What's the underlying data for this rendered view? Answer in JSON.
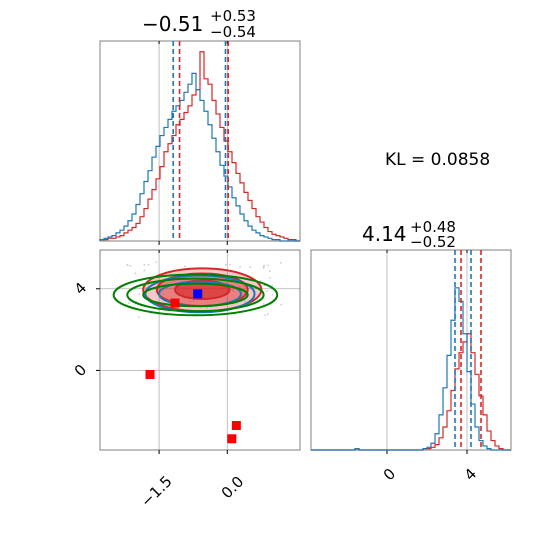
{
  "chart_data": [
    {
      "type": "histogram",
      "panel": "marginal-param-1",
      "title_value": "−0.51",
      "title_plus": "+0.53",
      "title_minus": "−0.54",
      "xlim": [
        -2.8,
        1.6
      ],
      "grid": true,
      "series": [
        {
          "color": "#d62728",
          "values": [
            1,
            1,
            2,
            2,
            3,
            4,
            6,
            8,
            10,
            13,
            18,
            24,
            31,
            38,
            46,
            55,
            66,
            72,
            78,
            86,
            90,
            95,
            100,
            108,
            112,
            140,
            120,
            116,
            104,
            94,
            84,
            74,
            66,
            58,
            50,
            43,
            36,
            30,
            24,
            18,
            14,
            10,
            7,
            5,
            4,
            3,
            2,
            1,
            1,
            0
          ]
        },
        {
          "color": "#1f77b4",
          "values": [
            1,
            2,
            3,
            4,
            6,
            8,
            11,
            15,
            20,
            27,
            35,
            44,
            52,
            62,
            70,
            78,
            84,
            90,
            96,
            100,
            104,
            110,
            116,
            124,
            112,
            104,
            96,
            86,
            76,
            66,
            56,
            48,
            40,
            32,
            26,
            20,
            15,
            11,
            8,
            6,
            4,
            3,
            2,
            1,
            1,
            0,
            0,
            0,
            0,
            0
          ]
        }
      ],
      "quantile_lines": [
        {
          "color": "#1f77b4",
          "x": [
            -1.19,
            -0.04
          ]
        },
        {
          "color": "#d62728",
          "x": [
            -1.05,
            0.02
          ]
        }
      ]
    },
    {
      "type": "histogram",
      "panel": "marginal-param-2",
      "title_value": "4.14",
      "title_plus": "+0.48",
      "title_minus": "−0.52",
      "xlim": [
        -3.8,
        6.2
      ],
      "xticks": [
        "0",
        "4"
      ],
      "grid": true,
      "series": [
        {
          "color": "#d62728",
          "values": [
            0,
            0,
            0,
            0,
            0,
            0,
            0,
            0,
            0,
            0,
            0,
            1,
            0,
            0,
            0,
            0,
            0,
            0,
            0,
            0,
            0,
            0,
            0,
            0,
            0,
            0,
            0,
            0,
            1,
            1,
            2,
            4,
            9,
            17,
            29,
            44,
            60,
            72,
            80,
            86,
            72,
            56,
            40,
            26,
            14,
            7,
            3,
            1,
            0,
            0
          ]
        },
        {
          "color": "#1f77b4",
          "values": [
            0,
            0,
            0,
            0,
            0,
            0,
            0,
            0,
            0,
            0,
            0,
            1,
            0,
            0,
            0,
            0,
            0,
            0,
            0,
            0,
            0,
            0,
            0,
            0,
            0,
            0,
            0,
            0,
            1,
            2,
            5,
            12,
            26,
            46,
            70,
            96,
            120,
            110,
            86,
            58,
            34,
            17,
            7,
            3,
            1,
            0,
            0,
            0,
            0,
            0
          ]
        }
      ],
      "quantile_lines": [
        {
          "color": "#1f77b4",
          "x": [
            3.4,
            4.2
          ]
        },
        {
          "color": "#d62728",
          "x": [
            3.7,
            4.7
          ]
        }
      ]
    },
    {
      "type": "scatter",
      "panel": "joint-param-1-param-2",
      "xlim": [
        -2.8,
        1.6
      ],
      "ylim": [
        -3.9,
        5.9
      ],
      "xticks": [
        "−1.5",
        "0.0"
      ],
      "yticks": [
        "0",
        "4"
      ],
      "grid": true,
      "contours": [
        {
          "color": "#d62728",
          "filled": true,
          "cx": -0.55,
          "cy": 3.95,
          "rx": [
            1.3,
            1.0,
            0.6
          ],
          "ry": [
            1.05,
            0.8,
            0.45
          ]
        },
        {
          "color": "#1f77b4",
          "filled": false,
          "cx": -0.6,
          "cy": 3.75,
          "rx": [
            1.2,
            0.9
          ],
          "ry": [
            0.9,
            0.6
          ]
        },
        {
          "color": "#008000",
          "filled": false,
          "cx": -0.7,
          "cy": 3.7,
          "rx": [
            1.8,
            1.5,
            1.15
          ],
          "ry": [
            1.0,
            0.8,
            0.55
          ]
        }
      ],
      "markers": [
        {
          "color": "#0000ff",
          "x": -0.65,
          "y": 3.75
        },
        {
          "color": "#ff0000",
          "x": -1.15,
          "y": 3.3
        },
        {
          "color": "#ff0000",
          "x": -1.7,
          "y": -0.2
        },
        {
          "color": "#ff0000",
          "x": 0.2,
          "y": -2.7
        },
        {
          "color": "#ff0000",
          "x": 0.1,
          "y": -3.35
        }
      ]
    }
  ],
  "kl_text": "KL = 0.0858"
}
